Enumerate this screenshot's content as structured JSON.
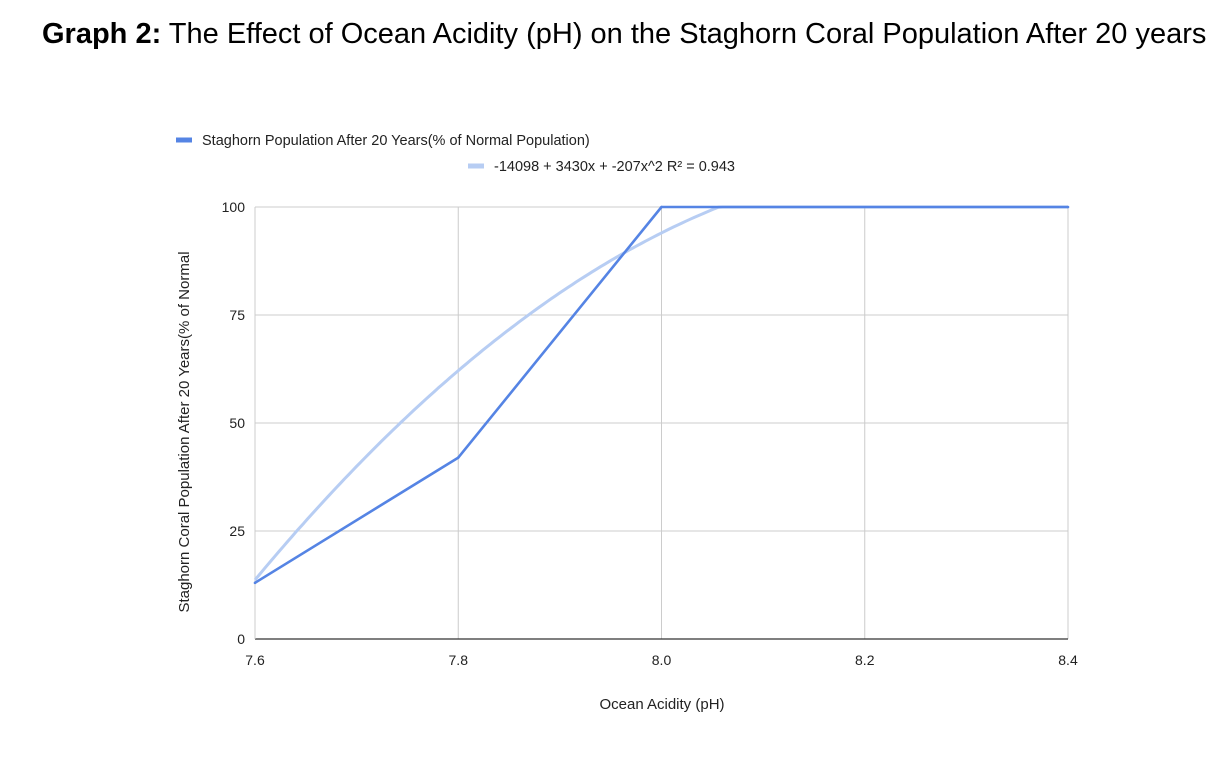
{
  "page_title": {
    "prefix": "Graph 2:",
    "text": "The Effect of Ocean Acidity (pH) on the Staghorn Coral Population After 20 years"
  },
  "chart_data": {
    "type": "line",
    "xlabel": "Ocean Acidity (pH)",
    "ylabel": "Staghorn Coral Population After 20 Years(% of Normal",
    "xlim": [
      7.6,
      8.4
    ],
    "ylim": [
      0,
      100
    ],
    "x_ticks": [
      "7.6",
      "7.8",
      "8.0",
      "8.2",
      "8.4"
    ],
    "y_ticks": [
      "0",
      "25",
      "50",
      "75",
      "100"
    ],
    "grid": true,
    "legend_position": "top",
    "series": [
      {
        "name": "Staghorn Population After 20 Years(% of Normal Population)",
        "color": "#5584e4",
        "x": [
          7.6,
          7.8,
          8.0,
          8.4
        ],
        "y": [
          13,
          42,
          100,
          100
        ]
      }
    ],
    "trendline": {
      "name": "-14098 + 3430x + -207x^2 R² = 0.943",
      "color": "#b7cdf3",
      "type": "polynomial",
      "intercept": -14098,
      "coef_x": 3430,
      "coef_x2": -207,
      "r_squared": 0.943,
      "clip_max": 100
    }
  }
}
